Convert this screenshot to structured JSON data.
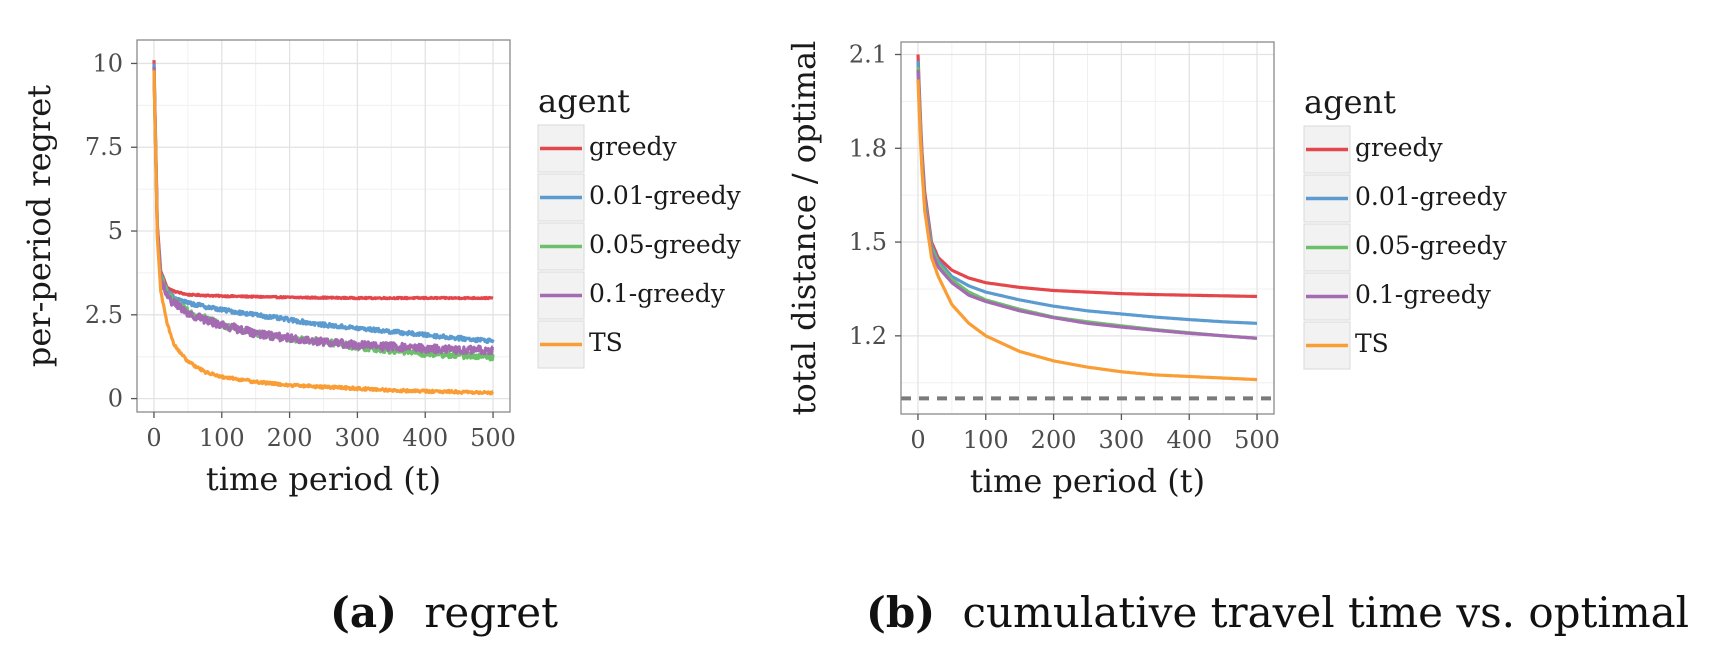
{
  "colors": {
    "greedy": "#e4474b",
    "0.01-greedy": "#5b9bd0",
    "0.05-greedy": "#6cc06a",
    "0.1-greedy": "#a46ab2",
    "TS": "#f99d34",
    "grid": "#e3e3e3",
    "optimal_line": "#7a7a7a"
  },
  "chart_data": [
    {
      "type": "line",
      "caption_tag": "(a)",
      "caption_text": "regret",
      "xlabel": "time period (t)",
      "ylabel": "per-period regret",
      "xlim": [
        -25,
        525
      ],
      "ylim": [
        -0.4,
        10.7
      ],
      "xticks": [
        0,
        100,
        200,
        300,
        400,
        500
      ],
      "yticks": [
        0,
        2.5,
        5,
        7.5,
        10
      ],
      "ytick_labels": [
        "0",
        "2.5",
        "5",
        "7.5",
        "10"
      ],
      "grid": true,
      "legend_title": "agent",
      "legend_position": "right",
      "x": [
        0,
        5,
        10,
        20,
        30,
        50,
        75,
        100,
        150,
        200,
        250,
        300,
        350,
        400,
        450,
        500
      ],
      "series": [
        {
          "name": "greedy",
          "values": [
            10.1,
            5.2,
            3.8,
            3.3,
            3.2,
            3.1,
            3.08,
            3.06,
            3.04,
            3.02,
            3.01,
            3.0,
            3.0,
            3.0,
            3.0,
            3.0
          ],
          "noise": 0.02
        },
        {
          "name": "0.01-greedy",
          "values": [
            10.0,
            5.0,
            3.7,
            3.2,
            3.0,
            2.85,
            2.75,
            2.65,
            2.5,
            2.35,
            2.2,
            2.1,
            2.0,
            1.9,
            1.8,
            1.72
          ],
          "noise": 0.06
        },
        {
          "name": "0.05-greedy",
          "values": [
            9.9,
            5.0,
            3.7,
            3.1,
            2.9,
            2.6,
            2.4,
            2.2,
            1.95,
            1.8,
            1.7,
            1.55,
            1.45,
            1.35,
            1.3,
            1.25
          ],
          "noise": 0.1
        },
        {
          "name": "0.1-greedy",
          "values": [
            9.9,
            5.0,
            3.6,
            3.0,
            2.85,
            2.55,
            2.35,
            2.2,
            1.95,
            1.8,
            1.7,
            1.6,
            1.55,
            1.5,
            1.45,
            1.45
          ],
          "noise": 0.12
        },
        {
          "name": "TS",
          "values": [
            9.8,
            4.8,
            3.2,
            2.2,
            1.6,
            1.1,
            0.8,
            0.65,
            0.5,
            0.4,
            0.35,
            0.3,
            0.25,
            0.22,
            0.2,
            0.18
          ],
          "noise": 0.04
        }
      ]
    },
    {
      "type": "line",
      "caption_tag": "(b)",
      "caption_text": "cumulative travel time vs. optimal",
      "xlabel": "time period (t)",
      "ylabel": "total distance / optimal",
      "xlim": [
        -25,
        525
      ],
      "ylim": [
        0.95,
        2.14
      ],
      "xticks": [
        0,
        100,
        200,
        300,
        400,
        500
      ],
      "yticks": [
        1.2,
        1.5,
        1.8,
        2.1
      ],
      "ytick_labels": [
        "1.2",
        "1.5",
        "1.8",
        "2.1"
      ],
      "grid": true,
      "reference_line": 1.0,
      "legend_title": "agent",
      "legend_position": "right",
      "x": [
        0,
        5,
        10,
        20,
        30,
        50,
        75,
        100,
        150,
        200,
        250,
        300,
        350,
        400,
        450,
        500
      ],
      "series": [
        {
          "name": "greedy",
          "values": [
            2.1,
            1.82,
            1.66,
            1.5,
            1.45,
            1.41,
            1.385,
            1.37,
            1.355,
            1.345,
            1.34,
            1.335,
            1.332,
            1.33,
            1.328,
            1.326
          ],
          "noise": 0
        },
        {
          "name": "0.01-greedy",
          "values": [
            2.08,
            1.8,
            1.64,
            1.49,
            1.44,
            1.39,
            1.36,
            1.34,
            1.315,
            1.295,
            1.28,
            1.27,
            1.26,
            1.252,
            1.245,
            1.24
          ],
          "noise": 0
        },
        {
          "name": "0.05-greedy",
          "values": [
            2.06,
            1.79,
            1.63,
            1.48,
            1.43,
            1.38,
            1.34,
            1.315,
            1.285,
            1.26,
            1.245,
            1.232,
            1.22,
            1.21,
            1.2,
            1.192
          ],
          "noise": 0
        },
        {
          "name": "0.1-greedy",
          "values": [
            2.05,
            1.78,
            1.62,
            1.47,
            1.42,
            1.37,
            1.33,
            1.31,
            1.28,
            1.258,
            1.24,
            1.228,
            1.218,
            1.208,
            1.2,
            1.192
          ],
          "noise": 0
        },
        {
          "name": "TS",
          "values": [
            2.02,
            1.76,
            1.6,
            1.45,
            1.39,
            1.3,
            1.24,
            1.2,
            1.15,
            1.12,
            1.1,
            1.085,
            1.075,
            1.07,
            1.065,
            1.06
          ],
          "noise": 0
        }
      ]
    }
  ]
}
